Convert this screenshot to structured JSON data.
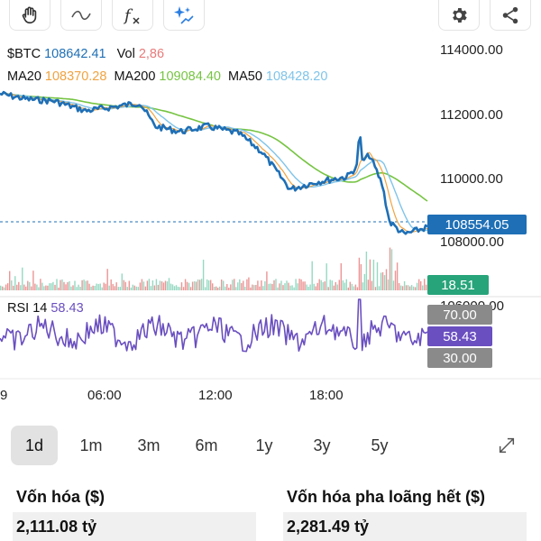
{
  "toolbar": {
    "icons": [
      "hand-draw-icon",
      "curve-line-icon",
      "function-icon",
      "ai-sparkle-icon",
      "settings-gear-icon",
      "share-icon"
    ]
  },
  "legend": {
    "symbol_label": "$BTC",
    "price": "108642.41",
    "vol_label": "Vol",
    "vol_value": "2,86",
    "ma20_label": "MA20",
    "ma20_value": "108370.28",
    "ma200_label": "MA200",
    "ma200_value": "109084.40",
    "ma50_label": "MA50",
    "ma50_value": "108428.20"
  },
  "price_axis": {
    "labels": [
      "114000.00",
      "112000.00",
      "110000.00",
      "108000.00",
      "106000.00"
    ]
  },
  "current_price_tag": "108554.05",
  "volume_tag": "18.51",
  "rsi": {
    "label": "RSI 14",
    "value": "58.43",
    "upper_tag": "70.00",
    "value_tag": "58.43",
    "lower_tag": "30.00"
  },
  "time_axis": {
    "labels": [
      "9",
      "06:00",
      "12:00",
      "18:00"
    ]
  },
  "time_ranges": [
    {
      "label": "1d",
      "active": true
    },
    {
      "label": "1m",
      "active": false
    },
    {
      "label": "3m",
      "active": false
    },
    {
      "label": "6m",
      "active": false
    },
    {
      "label": "1y",
      "active": false
    },
    {
      "label": "3y",
      "active": false
    },
    {
      "label": "5y",
      "active": false
    }
  ],
  "stats": {
    "market_cap_label": "Vốn hóa ($)",
    "market_cap_value": "2,111.08 tỷ",
    "fdv_label": "Vốn hóa pha loãng hết ($)",
    "fdv_value": "2,281.49 tỷ"
  },
  "colors": {
    "price_blue": "#1e6fb6",
    "ma20": "#f0a340",
    "ma200": "#76c442",
    "ma50": "#7fc4ea",
    "vol_red": "#e97a7a",
    "vol_green": "#27a47a",
    "rsi_purple": "#6a4fc0",
    "rsi_tag_gray": "#8a8a8a"
  }
}
